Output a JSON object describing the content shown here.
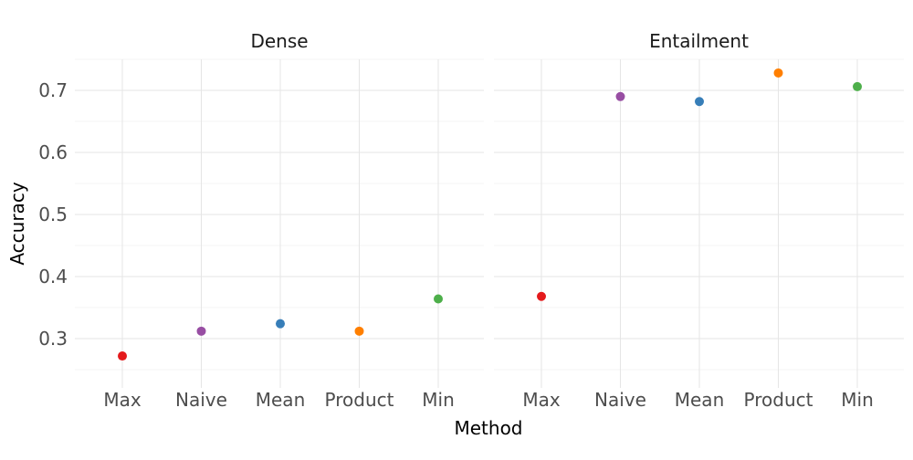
{
  "chart_data": {
    "type": "scatter",
    "xlabel": "Method",
    "ylabel": "Accuracy",
    "categories": [
      "Max",
      "Naive",
      "Mean",
      "Product",
      "Min"
    ],
    "category_colors": {
      "Max": "#e41a1c",
      "Naive": "#984ea3",
      "Mean": "#377eb8",
      "Product": "#ff7f00",
      "Min": "#4daf4a"
    },
    "ylim": [
      0.25,
      0.75
    ],
    "yticks": [
      0.3,
      0.4,
      0.5,
      0.6,
      0.7
    ],
    "ytick_labels": [
      "0.3",
      "0.4",
      "0.5",
      "0.6",
      "0.7"
    ],
    "grid": true,
    "legend": "none",
    "facets": [
      {
        "title": "Dense",
        "values": [
          0.272,
          0.312,
          0.324,
          0.312,
          0.364
        ]
      },
      {
        "title": "Entailment",
        "values": [
          0.368,
          0.69,
          0.682,
          0.728,
          0.706
        ]
      }
    ]
  }
}
